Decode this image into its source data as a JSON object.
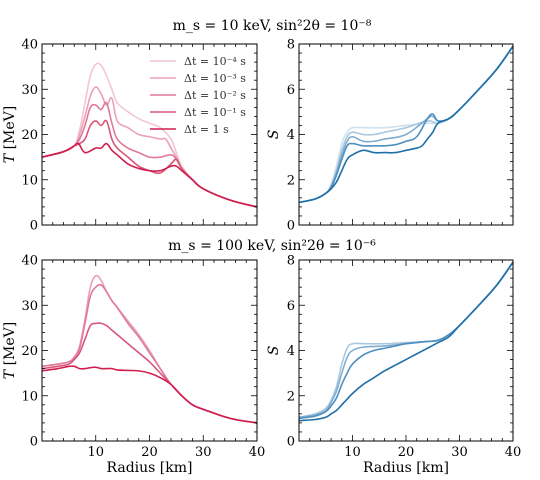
{
  "titles": [
    "m_s = 10 keV, sin²2θ = 10⁻⁸",
    "m_s = 100 keV, sin²2θ = 10⁻⁶"
  ],
  "legend": [
    "Δt = 10⁻⁴ s",
    "Δt = 10⁻³ s",
    "Δt = 10⁻² s",
    "Δt = 10⁻¹ s",
    "Δt = 1 s"
  ],
  "colors": {
    "T_series": [
      "#f3c6d2",
      "#eba1b6",
      "#e07a98",
      "#d9557b",
      "#cf1f4e"
    ],
    "S_series": [
      "#cfe0ee",
      "#a9c8e0",
      "#7fadd1",
      "#4f8fbe",
      "#1f6fa8"
    ]
  },
  "chart_data": [
    {
      "type": "line",
      "panel": "top-left",
      "title": "m_s = 10 keV, sin²2θ = 10⁻⁸",
      "xlabel": "",
      "ylabel": "T [MeV]",
      "xlim": [
        0,
        40
      ],
      "ylim": [
        0,
        40
      ],
      "xticks": [
        10,
        20,
        30,
        40
      ],
      "yticks": [
        0,
        10,
        20,
        30,
        40
      ],
      "legend_position": "top-right",
      "series": [
        {
          "name": "Δt = 10⁻⁴ s",
          "x": [
            0,
            4,
            6,
            7,
            8,
            9,
            10,
            11,
            12,
            13,
            14,
            16,
            18,
            20,
            22,
            24,
            25,
            26,
            28,
            30,
            35,
            40
          ],
          "y": [
            15,
            16.2,
            17.5,
            21,
            27,
            33,
            35.5,
            35.3,
            33,
            30,
            27,
            25,
            23.5,
            22.5,
            21.5,
            19,
            16,
            13,
            10,
            8,
            5.5,
            4
          ]
        },
        {
          "name": "Δt = 10⁻³ s",
          "x": [
            0,
            4,
            6,
            7,
            8,
            9,
            10,
            11,
            12,
            13,
            14,
            16,
            18,
            20,
            22,
            23,
            24,
            25,
            26,
            28,
            30,
            35,
            40
          ],
          "y": [
            15,
            16.2,
            17.5,
            20,
            24,
            28.5,
            30.5,
            29,
            26.5,
            28,
            23,
            21.5,
            20,
            19.5,
            19,
            19,
            17,
            15,
            12.5,
            10,
            8,
            5.5,
            4
          ]
        },
        {
          "name": "Δt = 10⁻² s",
          "x": [
            0,
            4,
            6,
            7,
            8,
            9,
            10,
            11,
            12,
            13,
            14,
            16,
            18,
            20,
            22,
            24,
            25,
            26,
            28,
            30,
            35,
            40
          ],
          "y": [
            15,
            16.2,
            17.5,
            19,
            22,
            26,
            26.5,
            25.5,
            27,
            22.5,
            19,
            17,
            16,
            15,
            15,
            15.5,
            14.5,
            12.5,
            10,
            8,
            5.5,
            4
          ]
        },
        {
          "name": "Δt = 10⁻¹ s",
          "x": [
            0,
            4,
            6,
            7,
            8,
            9,
            10,
            11,
            12,
            13,
            14,
            16,
            18,
            20,
            22,
            24,
            25,
            26,
            28,
            30,
            35,
            40
          ],
          "y": [
            15,
            16.2,
            17.5,
            18,
            19,
            22,
            23,
            22,
            23,
            19,
            17,
            15,
            13,
            12,
            11.5,
            13.5,
            14.5,
            12.5,
            10,
            8,
            5.5,
            4
          ]
        },
        {
          "name": "Δt = 1 s",
          "x": [
            0,
            4,
            6,
            6.8,
            8,
            10,
            11,
            12,
            13,
            14,
            16,
            18,
            20,
            22,
            24,
            25,
            26,
            28,
            30,
            35,
            40
          ],
          "y": [
            15,
            16.2,
            17.5,
            18,
            16,
            17,
            17,
            18,
            16.5,
            15.5,
            13.5,
            12.5,
            12,
            12,
            13,
            13,
            12,
            10,
            8,
            5.5,
            4
          ]
        }
      ]
    },
    {
      "type": "line",
      "panel": "top-right",
      "title": "",
      "xlabel": "",
      "ylabel": "S",
      "xlim": [
        0,
        40
      ],
      "ylim": [
        0,
        8
      ],
      "xticks": [
        10,
        20,
        30,
        40
      ],
      "yticks": [
        0,
        2,
        4,
        6,
        8
      ],
      "series": [
        {
          "x": [
            0,
            3,
            5,
            6,
            7,
            8,
            9,
            10,
            12,
            16,
            20,
            24,
            26,
            28,
            30,
            34,
            37,
            40
          ],
          "y": [
            1,
            1.15,
            1.4,
            1.8,
            2.6,
            3.6,
            4.1,
            4.3,
            4.3,
            4.3,
            4.4,
            4.5,
            4.5,
            4.7,
            5.1,
            6.1,
            6.9,
            7.9
          ]
        },
        {
          "x": [
            0,
            3,
            5,
            6,
            7,
            8,
            9,
            10,
            12,
            14,
            16,
            20,
            24,
            26,
            28,
            30,
            34,
            37,
            40
          ],
          "y": [
            1,
            1.15,
            1.4,
            1.75,
            2.4,
            3.3,
            3.9,
            4.1,
            4.0,
            4.0,
            4.1,
            4.3,
            4.6,
            4.5,
            4.7,
            5.1,
            6.1,
            6.9,
            7.9
          ]
        },
        {
          "x": [
            0,
            3,
            5,
            6,
            7,
            8,
            9,
            10,
            12,
            14,
            16,
            20,
            24,
            25,
            26,
            28,
            30,
            34,
            37,
            40
          ],
          "y": [
            1,
            1.15,
            1.4,
            1.7,
            2.3,
            3.1,
            3.7,
            3.9,
            3.7,
            3.7,
            3.8,
            4.0,
            4.7,
            4.8,
            4.6,
            4.7,
            5.1,
            6.1,
            6.9,
            7.9
          ]
        },
        {
          "x": [
            0,
            3,
            5,
            6,
            7,
            8,
            9,
            10,
            12,
            14,
            16,
            18,
            20,
            22,
            24,
            25,
            26,
            28,
            30,
            34,
            37,
            40
          ],
          "y": [
            1,
            1.15,
            1.4,
            1.65,
            2.2,
            2.9,
            3.5,
            3.6,
            3.5,
            3.5,
            3.5,
            3.55,
            3.7,
            3.9,
            4.7,
            4.9,
            4.6,
            4.7,
            5.1,
            6.1,
            6.9,
            7.9
          ]
        },
        {
          "x": [
            0,
            3,
            5,
            6,
            7,
            8,
            9,
            10,
            12,
            14,
            16,
            18,
            20,
            22,
            23,
            24,
            25,
            26,
            28,
            30,
            34,
            37,
            40
          ],
          "y": [
            1,
            1.15,
            1.4,
            1.6,
            1.9,
            2.4,
            2.9,
            3.1,
            3.3,
            3.2,
            3.2,
            3.2,
            3.3,
            3.4,
            3.5,
            3.8,
            4.1,
            4.5,
            4.7,
            5.1,
            6.1,
            6.9,
            7.9
          ]
        }
      ]
    },
    {
      "type": "line",
      "panel": "bottom-left",
      "title": "m_s = 100 keV, sin²2θ = 10⁻⁶",
      "xlabel": "Radius [km]",
      "ylabel": "T [MeV]",
      "xlim": [
        0,
        40
      ],
      "ylim": [
        0,
        40
      ],
      "xticks": [
        10,
        20,
        30,
        40
      ],
      "yticks": [
        0,
        10,
        20,
        30,
        40
      ],
      "series": [
        {
          "x": [
            0,
            3,
            5,
            6,
            7,
            8,
            9,
            10,
            11,
            12,
            13,
            14,
            16,
            18,
            20,
            22,
            24,
            26,
            28,
            30,
            35,
            40
          ],
          "y": [
            16.5,
            17,
            17.5,
            18.5,
            21,
            27,
            34,
            36.5,
            35.5,
            33,
            31,
            29.5,
            26.5,
            23.5,
            20,
            16,
            12.5,
            10,
            8,
            7,
            5,
            4
          ]
        },
        {
          "x": [
            0,
            3,
            5,
            6,
            7,
            8,
            9,
            10,
            11,
            12,
            13,
            14,
            16,
            18,
            20,
            22,
            24,
            26,
            28,
            30,
            35,
            40
          ],
          "y": [
            16.5,
            17,
            17.5,
            18.5,
            20.5,
            26,
            32,
            34,
            34.5,
            33,
            31,
            29.5,
            26,
            23,
            19.5,
            16,
            12.5,
            10,
            8,
            7,
            5,
            4
          ]
        },
        {
          "x": [
            0,
            3,
            5,
            6,
            7,
            8,
            9,
            10,
            11,
            12,
            13,
            14,
            16,
            18,
            20,
            22,
            24,
            26,
            28,
            30,
            35,
            40
          ],
          "y": [
            16,
            16.5,
            17,
            18,
            19.5,
            22.5,
            25.5,
            26,
            26,
            25.5,
            24.5,
            23.5,
            21.5,
            19.5,
            17.5,
            15,
            12.5,
            10,
            8,
            7,
            5,
            4
          ]
        },
        {
          "x": [
            0,
            3,
            5,
            6,
            7,
            8,
            9,
            10,
            11,
            12,
            13,
            14,
            16,
            18,
            20,
            22,
            24,
            26,
            28,
            30,
            35,
            40
          ],
          "y": [
            15.5,
            16,
            16.5,
            16.5,
            16,
            16,
            16.2,
            16.3,
            16,
            16,
            16,
            15.7,
            15.6,
            15.5,
            15,
            14,
            12.5,
            10,
            8,
            7,
            5,
            4
          ]
        }
      ]
    },
    {
      "type": "line",
      "panel": "bottom-right",
      "title": "",
      "xlabel": "Radius [km]",
      "ylabel": "S",
      "xlim": [
        0,
        40
      ],
      "ylim": [
        0,
        8
      ],
      "xticks": [
        10,
        20,
        30,
        40
      ],
      "yticks": [
        0,
        2,
        4,
        6,
        8
      ],
      "series": [
        {
          "x": [
            0,
            3,
            5,
            6,
            7,
            8,
            9,
            10,
            12,
            16,
            20,
            24,
            26,
            28,
            30,
            34,
            37,
            40
          ],
          "y": [
            1.05,
            1.2,
            1.45,
            1.8,
            2.4,
            3.4,
            4.1,
            4.3,
            4.3,
            4.3,
            4.35,
            4.4,
            4.45,
            4.7,
            5.1,
            6.1,
            6.9,
            7.9
          ]
        },
        {
          "x": [
            0,
            3,
            5,
            6,
            7,
            8,
            9,
            10,
            12,
            16,
            20,
            24,
            26,
            28,
            30,
            34,
            37,
            40
          ],
          "y": [
            1.05,
            1.15,
            1.35,
            1.7,
            2.2,
            3.0,
            3.7,
            4.0,
            4.15,
            4.2,
            4.3,
            4.4,
            4.45,
            4.7,
            5.1,
            6.1,
            6.9,
            7.9
          ]
        },
        {
          "x": [
            0,
            3,
            5,
            6,
            7,
            8,
            9,
            10,
            12,
            14,
            16,
            18,
            20,
            24,
            26,
            28,
            30,
            34,
            37,
            40
          ],
          "y": [
            1.0,
            1.1,
            1.3,
            1.55,
            1.9,
            2.5,
            3.0,
            3.4,
            3.8,
            4.0,
            4.1,
            4.2,
            4.3,
            4.4,
            4.45,
            4.7,
            5.1,
            6.1,
            6.9,
            7.9
          ]
        },
        {
          "x": [
            0,
            3,
            5,
            6,
            7,
            8,
            9,
            10,
            12,
            14,
            16,
            18,
            20,
            22,
            24,
            26,
            28,
            30,
            34,
            37,
            40
          ],
          "y": [
            0.9,
            0.95,
            1.05,
            1.2,
            1.35,
            1.6,
            1.85,
            2.1,
            2.5,
            2.8,
            3.1,
            3.35,
            3.6,
            3.85,
            4.1,
            4.35,
            4.6,
            5.1,
            6.1,
            6.9,
            7.9
          ]
        }
      ]
    }
  ]
}
